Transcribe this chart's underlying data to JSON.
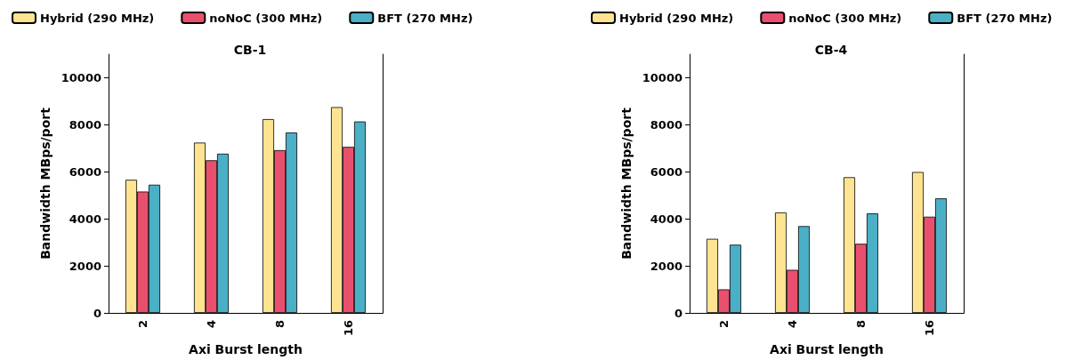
{
  "chart_data": [
    {
      "type": "bar",
      "title": "CB-1",
      "xlabel": "Axi Burst length",
      "ylabel": "Bandwidth MBps/port",
      "categories": [
        "2",
        "4",
        "8",
        "16"
      ],
      "series": [
        {
          "name": "Hybrid (290 MHz)",
          "color": "#fee391",
          "values": [
            5660,
            7240,
            8240,
            8750
          ]
        },
        {
          "name": "noNoC (300 MHz)",
          "color": "#e9506e",
          "values": [
            5160,
            6490,
            6920,
            7060
          ]
        },
        {
          "name": "BFT (270 MHz)",
          "color": "#4bafc6",
          "values": [
            5450,
            6770,
            7670,
            8140
          ]
        }
      ],
      "ylim": [
        0,
        11000
      ],
      "yticks": [
        0,
        2000,
        4000,
        6000,
        8000,
        10000
      ],
      "grid": false,
      "legend": "top"
    },
    {
      "type": "bar",
      "title": "CB-4",
      "xlabel": "Axi Burst length",
      "ylabel": "Bandwidth MBps/port",
      "categories": [
        "2",
        "4",
        "8",
        "16"
      ],
      "series": [
        {
          "name": "Hybrid (290 MHz)",
          "color": "#fee391",
          "values": [
            3150,
            4270,
            5770,
            5990
          ]
        },
        {
          "name": "noNoC (300 MHz)",
          "color": "#e9506e",
          "values": [
            1000,
            1830,
            2940,
            4090
          ]
        },
        {
          "name": "BFT (270 MHz)",
          "color": "#4bafc6",
          "values": [
            2900,
            3690,
            4230,
            4870
          ]
        }
      ],
      "ylim": [
        0,
        11000
      ],
      "yticks": [
        0,
        2000,
        4000,
        6000,
        8000,
        10000
      ],
      "grid": false,
      "legend": "top"
    }
  ]
}
